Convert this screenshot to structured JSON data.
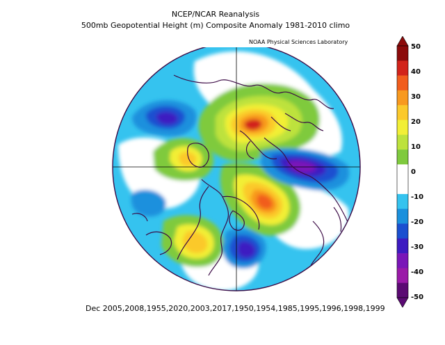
{
  "header": {
    "title": "NCEP/NCAR Reanalysis",
    "subtitle": "500mb Geopotential Height (m) Composite Anomaly 1981-2010 climo",
    "credit": "NOAA Physical Sciences Laboratory"
  },
  "footer": {
    "years": "Dec 2005,2008,1955,2020,2003,2017,1950,1954,1985,1995,1996,1998,1999"
  },
  "colorbar": {
    "levels": [
      "50",
      "40",
      "30",
      "20",
      "10",
      "0",
      "-10",
      "-20",
      "-30",
      "-40",
      "-50"
    ],
    "colors": [
      "#8c0b0b",
      "#d2231a",
      "#f15d1d",
      "#f8991f",
      "#fbc92b",
      "#f2ef36",
      "#bde23c",
      "#7fca3e",
      "#ffffff",
      "#ffffff",
      "#35c3ef",
      "#1a90dd",
      "#1a4fd0",
      "#3d1bc1",
      "#7a16b8",
      "#9a1aa8",
      "#5b0a73"
    ]
  }
}
